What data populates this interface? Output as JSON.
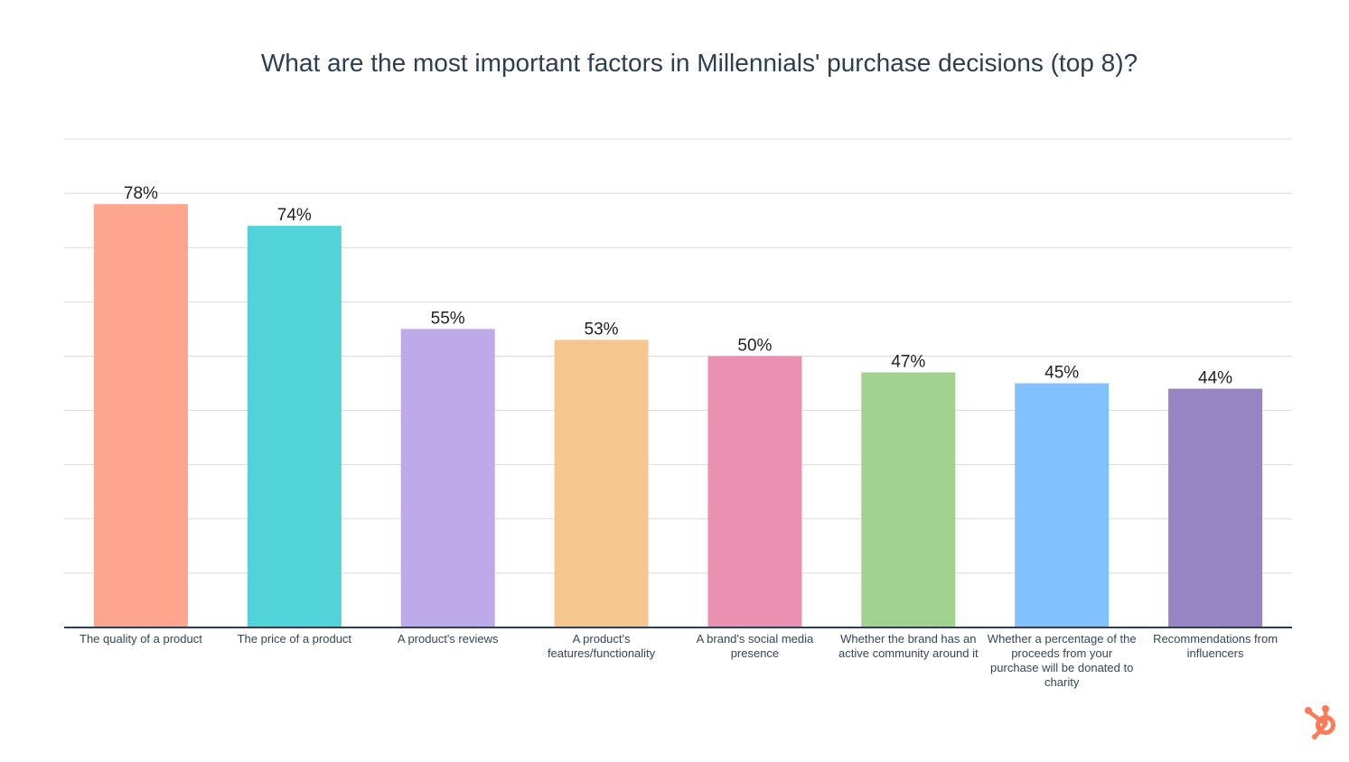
{
  "chart_data": {
    "type": "bar",
    "title": "What are the most important factors in Millennials' purchase decisions (top 8)?",
    "xlabel": "",
    "ylabel": "",
    "ylim": [
      0,
      90
    ],
    "grid": true,
    "categories": [
      "The quality of a product",
      "The price of a product",
      "A product's reviews",
      "A product's features/functionality",
      "A brand's social media presence",
      "Whether the brand has an active community around it",
      "Whether a percentage of the proceeds from your purchase will be donated to charity",
      "Recommendations from influencers"
    ],
    "values": [
      78,
      74,
      55,
      53,
      50,
      47,
      45,
      44
    ],
    "data_labels": [
      "78%",
      "74%",
      "55%",
      "53%",
      "50%",
      "47%",
      "45%",
      "44%"
    ],
    "colors": [
      "#fea58e",
      "#51d3d9",
      "#bea9e9",
      "#f5c78e",
      "#ea90b1",
      "#a2d28f",
      "#81c1fd",
      "#9784c2"
    ]
  },
  "brand": {
    "logo_icon": "hubspot-sprocket-icon",
    "logo_color": "#ff7a59"
  }
}
